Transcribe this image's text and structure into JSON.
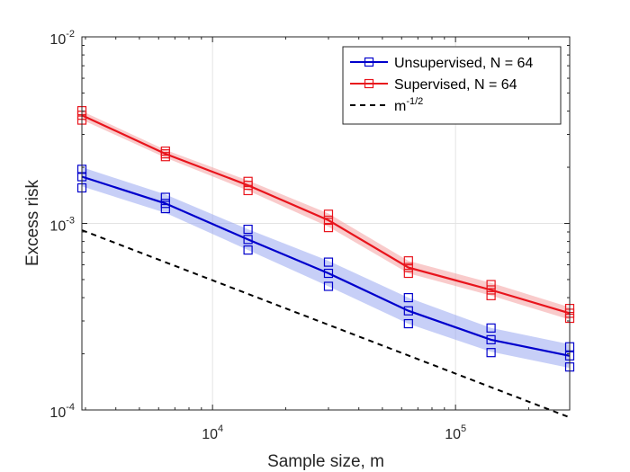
{
  "chart_data": {
    "type": "line",
    "xlabel": "Sample size, m",
    "ylabel": "Excess risk",
    "xscale": "log",
    "yscale": "log",
    "xlim": [
      2900,
      295000
    ],
    "ylim": [
      0.0001,
      0.01
    ],
    "x_ticks": [
      {
        "value": 10000,
        "base": "10",
        "exp": "4"
      },
      {
        "value": 100000,
        "base": "10",
        "exp": "5"
      }
    ],
    "y_ticks": [
      {
        "value": 0.0001,
        "base": "10",
        "exp": "-4"
      },
      {
        "value": 0.001,
        "base": "10",
        "exp": "-3"
      },
      {
        "value": 0.01,
        "base": "10",
        "exp": "-2"
      }
    ],
    "grid": true,
    "legend_position": "top-right",
    "series": [
      {
        "name": "Unsupervised, N = 64",
        "color": "#0000cc",
        "band_color": "#99a8f0",
        "x": [
          2900,
          6400,
          14000,
          30000,
          64000,
          140000,
          295000
        ],
        "y": [
          0.00178,
          0.00128,
          0.00082,
          0.00054,
          0.00034,
          0.000238,
          0.000195
        ],
        "band_low": [
          0.00158,
          0.00114,
          0.00072,
          0.00046,
          0.00029,
          0.000205,
          0.000168
        ],
        "band_high": [
          0.002,
          0.00143,
          0.00093,
          0.00063,
          0.0004,
          0.000275,
          0.000225
        ],
        "markers": [
          [
            0.00195,
            0.00178,
            0.00155
          ],
          [
            0.00138,
            0.00128,
            0.0012
          ],
          [
            0.00093,
            0.00082,
            0.00072
          ],
          [
            0.00062,
            0.00054,
            0.00046
          ],
          [
            0.0004,
            0.00034,
            0.00029
          ],
          [
            0.000275,
            0.000238,
            0.000203
          ],
          [
            0.000218,
            0.000195,
            0.00017
          ]
        ]
      },
      {
        "name": "Supervised, N = 64",
        "color": "#e8141c",
        "band_color": "#f4a0a0",
        "x": [
          2900,
          6400,
          14000,
          30000,
          64000,
          140000,
          295000
        ],
        "y": [
          0.0038,
          0.00236,
          0.0016,
          0.00104,
          0.00058,
          0.00044,
          0.00033
        ],
        "band_low": [
          0.0036,
          0.00225,
          0.0015,
          0.00096,
          0.00054,
          0.00041,
          0.000305
        ],
        "band_high": [
          0.004,
          0.00248,
          0.0017,
          0.00113,
          0.00063,
          0.00048,
          0.000355
        ],
        "markers": [
          [
            0.00402,
            0.0038,
            0.00358
          ],
          [
            0.00244,
            0.00236,
            0.00228
          ],
          [
            0.00168,
            0.0016,
            0.0015
          ],
          [
            0.00112,
            0.00104,
            0.00095
          ],
          [
            0.00063,
            0.00058,
            0.00054
          ],
          [
            0.00047,
            0.00044,
            0.00041
          ],
          [
            0.00035,
            0.00033,
            0.00031
          ]
        ]
      },
      {
        "name": "m",
        "name_exp": "-1/2",
        "color": "#000000",
        "dashed": true,
        "x": [
          2900,
          295000
        ],
        "y": [
          0.00092,
          9.12e-05
        ]
      }
    ]
  }
}
